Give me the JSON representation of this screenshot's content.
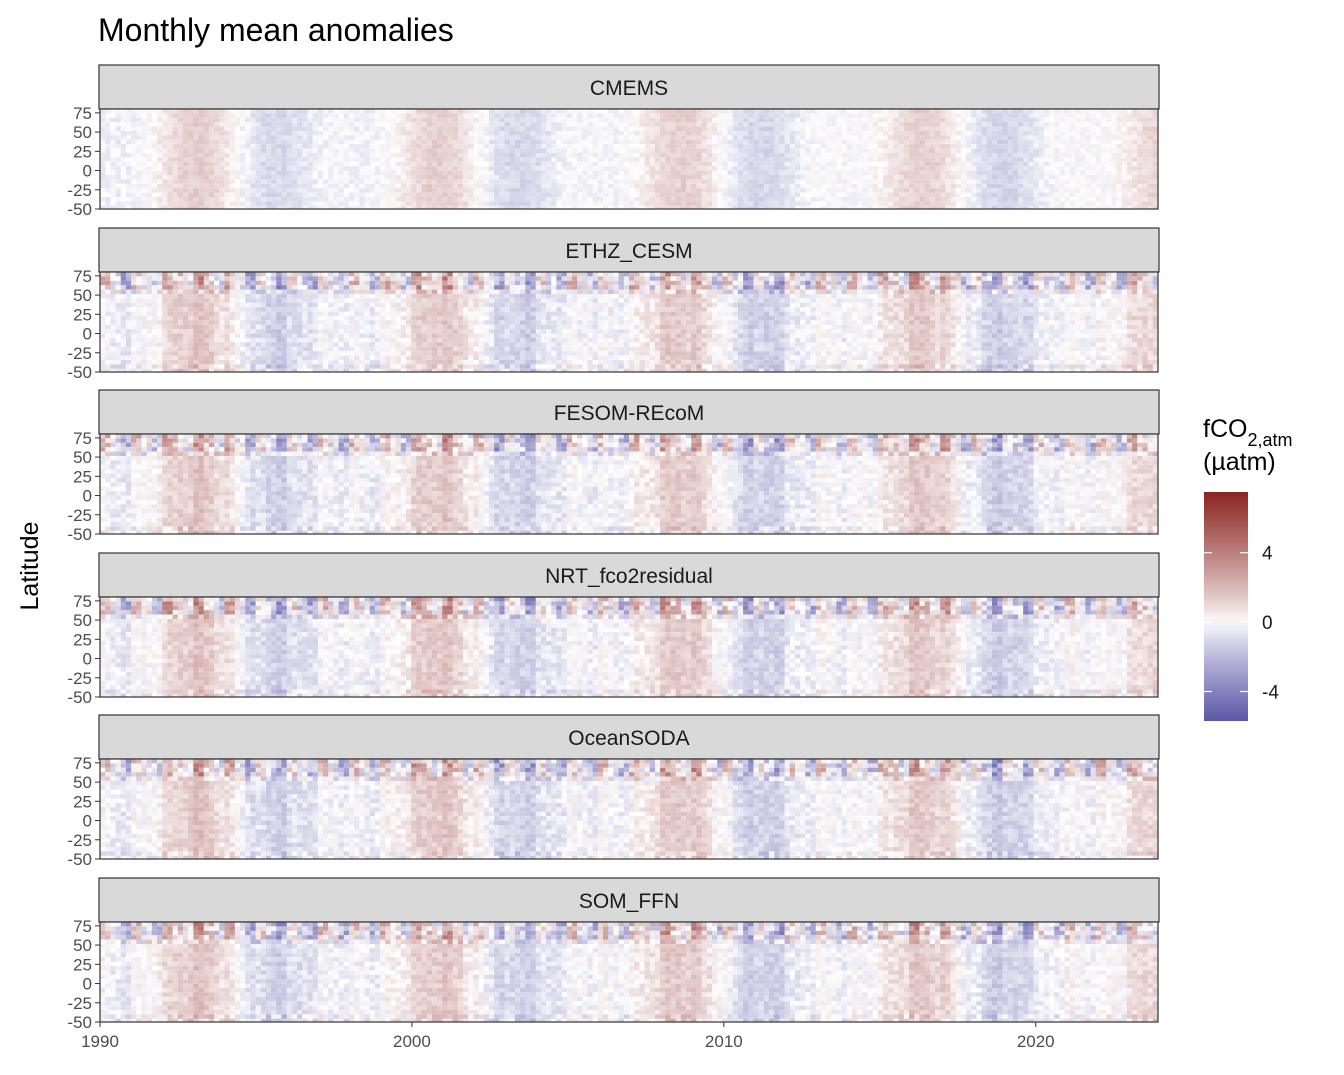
{
  "chart_data": {
    "type": "heatmap",
    "title": "Monthly mean anomalies",
    "ylabel": "Latitude",
    "xlabel": "",
    "x_range": [
      1990,
      2023.92
    ],
    "y_range": [
      -50,
      80
    ],
    "x_ticks": [
      1990,
      2000,
      2010,
      2020
    ],
    "x_tick_labels": [
      "1990",
      "2000",
      "2010",
      "2020"
    ],
    "y_ticks": [
      75,
      50,
      25,
      0,
      -25,
      -50
    ],
    "y_tick_labels": [
      "75",
      "50",
      "25",
      "0",
      "-25",
      "-50"
    ],
    "grid": false,
    "legend": {
      "title_main": "fCO",
      "title_sub": "2,atm",
      "title_unit": "(µatm)",
      "placement": "right",
      "range": [
        -5.7,
        7.5
      ],
      "ticks": [
        4,
        0,
        -4
      ],
      "tick_labels": [
        "4",
        "0",
        "-4"
      ],
      "low_color": "#5b57a8",
      "mid_color": "#ffffff",
      "high_color": "#8b2520"
    },
    "panel_strip_color": "#d9d9d9",
    "panels": [
      {
        "name": "CMEMS"
      },
      {
        "name": "ETHZ_CESM"
      },
      {
        "name": "FESOM-REcoM"
      },
      {
        "name": "NRT_fco2residual"
      },
      {
        "name": "OceanSODA"
      },
      {
        "name": "SOM_FFN"
      }
    ]
  }
}
